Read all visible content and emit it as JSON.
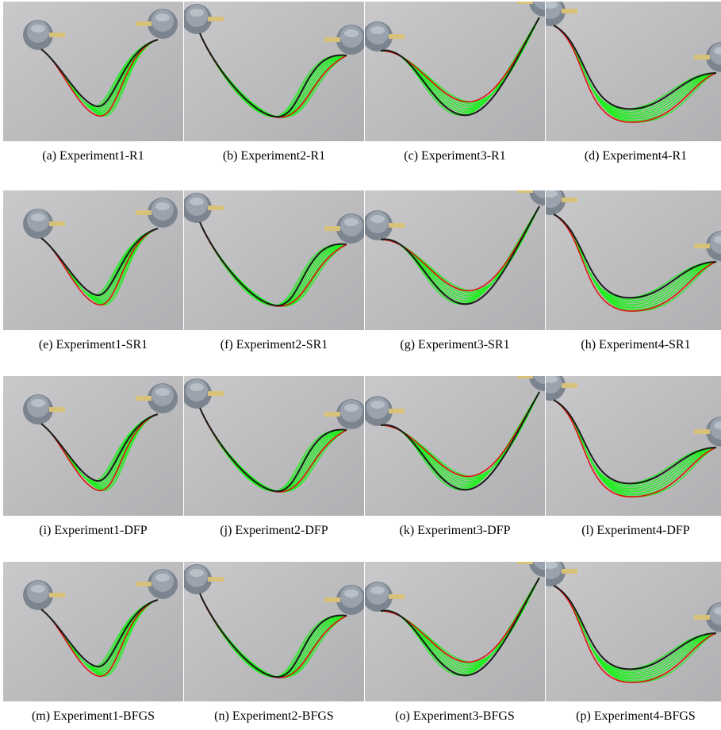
{
  "figure": {
    "rows": 4,
    "columns": 4,
    "colors": {
      "background": "#bdbdbf",
      "cable": "#1a1a1a",
      "reference": "#e01010",
      "prediction": "#22ee22",
      "robot_body": "#7c858f",
      "robot_cap": "#9aa3ad",
      "gripper": "#d8c27a"
    },
    "panels": [
      {
        "caption": "(a) Experiment1-R1",
        "experiment": 1
      },
      {
        "caption": "(b) Experiment2-R1",
        "experiment": 2
      },
      {
        "caption": "(c) Experiment3-R1",
        "experiment": 3
      },
      {
        "caption": "(d) Experiment4-R1",
        "experiment": 4
      },
      {
        "caption": "(e) Experiment1-SR1",
        "experiment": 1
      },
      {
        "caption": "(f) Experiment2-SR1",
        "experiment": 2
      },
      {
        "caption": "(g) Experiment3-SR1",
        "experiment": 3
      },
      {
        "caption": "(h) Experiment4-SR1",
        "experiment": 4
      },
      {
        "caption": "(i) Experiment1-DFP",
        "experiment": 1
      },
      {
        "caption": "(j) Experiment2-DFP",
        "experiment": 2
      },
      {
        "caption": "(k) Experiment3-DFP",
        "experiment": 3
      },
      {
        "caption": "(l) Experiment4-DFP",
        "experiment": 4
      },
      {
        "caption": "(m) Experiment1-BFGS",
        "experiment": 1
      },
      {
        "caption": "(n) Experiment2-BFGS",
        "experiment": 2
      },
      {
        "caption": "(o) Experiment3-BFGS",
        "experiment": 3
      },
      {
        "caption": "(p) Experiment4-BFGS",
        "experiment": 4
      }
    ]
  }
}
